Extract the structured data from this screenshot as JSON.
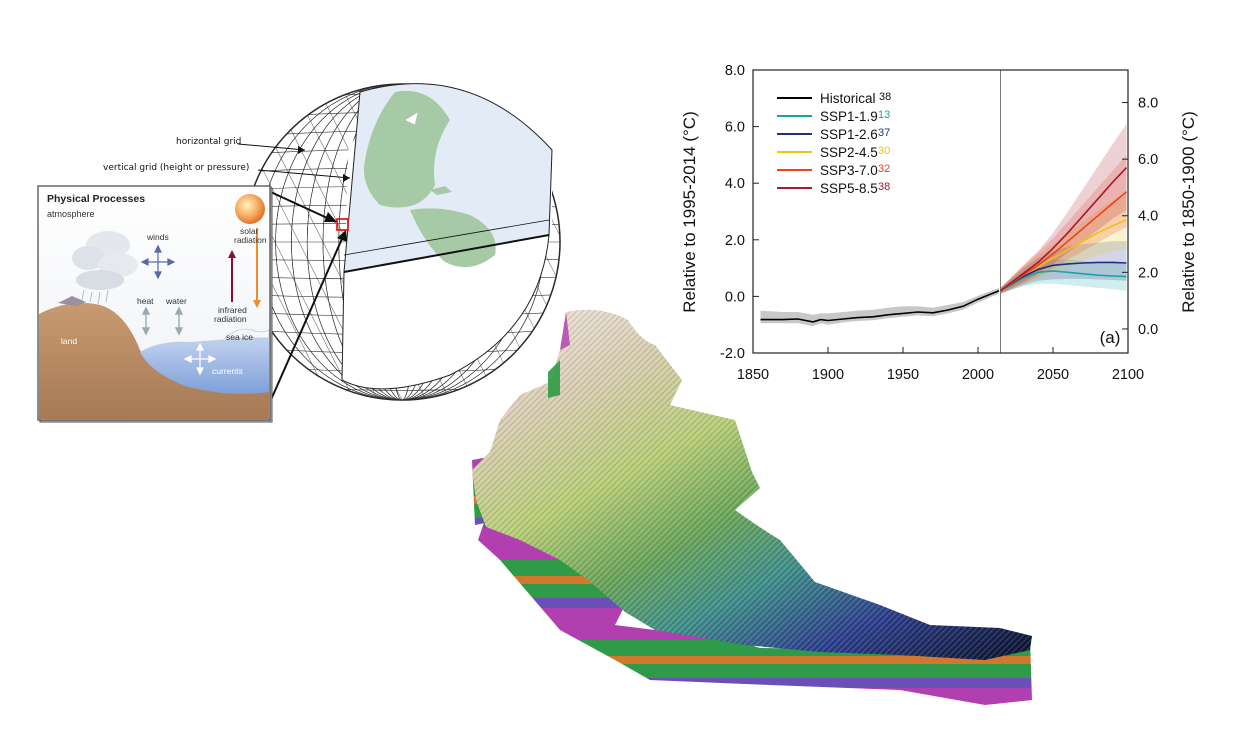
{
  "globe_panel": {
    "horizontal_grid_label": "horizontal grid",
    "vertical_grid_label": "vertical grid (height or pressure)",
    "inset": {
      "title": "Physical Processes",
      "subtitle": "atmosphere",
      "winds": "winds",
      "solar_line1": "solar",
      "solar_line2": "radiation",
      "heat": "heat",
      "water": "water",
      "infrared_line1": "infrared",
      "infrared_line2": "radiation",
      "sea_ice": "sea ice",
      "land": "land",
      "currents": "currents"
    }
  },
  "terrain_block": {
    "elevation_colors": [
      "#e8d8cc",
      "#b8cf7a",
      "#5f9c52",
      "#3a8a86",
      "#2e3c8a",
      "#101a3a"
    ],
    "strata_colors": [
      "#b23fb0",
      "#2f9a47",
      "#d0782e",
      "#6a4fb8"
    ]
  },
  "chart_data": {
    "type": "line",
    "panel_label": "(a)",
    "ylabel_left": "Relative to 1995-2014 (°C)",
    "ylabel_right": "Relative to 1850-1900 (°C)",
    "xlim": [
      1850,
      2100
    ],
    "ylim_left": [
      -2.0,
      8.0
    ],
    "ylim_right": [
      -0.85,
      9.15
    ],
    "x_ticks": [
      "1850",
      "1900",
      "1950",
      "2000",
      "2050",
      "2100"
    ],
    "y_ticks_left": [
      "-2.0",
      "0.0",
      "2.0",
      "4.0",
      "6.0",
      "8.0"
    ],
    "y_ticks_right": [
      "0.0",
      "2.0",
      "4.0",
      "6.0",
      "8.0"
    ],
    "divider_year": 2015,
    "legend_position": "top-left",
    "series": [
      {
        "name": "Historical",
        "count": "38",
        "color": "#000000",
        "x": [
          1855,
          1870,
          1880,
          1890,
          1895,
          1900,
          1910,
          1920,
          1930,
          1940,
          1950,
          1960,
          1970,
          1980,
          1990,
          2000,
          2014
        ],
        "y": [
          -0.82,
          -0.82,
          -0.8,
          -0.9,
          -0.82,
          -0.85,
          -0.8,
          -0.75,
          -0.72,
          -0.65,
          -0.6,
          -0.55,
          -0.58,
          -0.48,
          -0.35,
          -0.1,
          0.2
        ],
        "lower": [
          -0.95,
          -0.95,
          -0.95,
          -1.05,
          -0.95,
          -1.0,
          -0.92,
          -0.87,
          -0.84,
          -0.77,
          -0.72,
          -0.67,
          -0.7,
          -0.6,
          -0.47,
          -0.22,
          0.1
        ],
        "upper": [
          -0.5,
          -0.55,
          -0.55,
          -0.65,
          -0.6,
          -0.6,
          -0.55,
          -0.5,
          -0.47,
          -0.4,
          -0.35,
          -0.35,
          -0.4,
          -0.3,
          -0.2,
          0.02,
          0.3
        ]
      },
      {
        "name": "SSP1-1.9",
        "count": "13",
        "color": "#17a4a4",
        "x": [
          2015,
          2030,
          2040,
          2050,
          2060,
          2070,
          2080,
          2090,
          2099
        ],
        "y": [
          0.2,
          0.65,
          0.85,
          0.9,
          0.85,
          0.8,
          0.75,
          0.72,
          0.7
        ],
        "lower": [
          0.1,
          0.35,
          0.45,
          0.45,
          0.4,
          0.35,
          0.3,
          0.25,
          0.2
        ],
        "upper": [
          0.3,
          0.9,
          1.2,
          1.3,
          1.3,
          1.25,
          1.2,
          1.2,
          1.15
        ]
      },
      {
        "name": "SSP1-2.6",
        "count": "37",
        "color": "#1e3080",
        "x": [
          2015,
          2030,
          2040,
          2050,
          2060,
          2070,
          2080,
          2090,
          2099
        ],
        "y": [
          0.2,
          0.7,
          0.95,
          1.1,
          1.15,
          1.18,
          1.2,
          1.2,
          1.18
        ],
        "lower": [
          0.1,
          0.4,
          0.55,
          0.6,
          0.62,
          0.62,
          0.6,
          0.58,
          0.55
        ],
        "upper": [
          0.3,
          1.0,
          1.35,
          1.6,
          1.75,
          1.85,
          1.9,
          1.95,
          1.95
        ]
      },
      {
        "name": "SSP2-4.5",
        "count": "30",
        "color": "#eac40e",
        "x": [
          2015,
          2030,
          2040,
          2050,
          2060,
          2070,
          2080,
          2090,
          2099
        ],
        "y": [
          0.2,
          0.75,
          1.05,
          1.35,
          1.65,
          1.95,
          2.25,
          2.5,
          2.7
        ],
        "lower": [
          0.1,
          0.45,
          0.65,
          0.85,
          1.05,
          1.25,
          1.45,
          1.6,
          1.7
        ],
        "upper": [
          0.3,
          1.05,
          1.45,
          1.85,
          2.25,
          2.65,
          3.05,
          3.4,
          3.7
        ]
      },
      {
        "name": "SSP3-7.0",
        "count": "32",
        "color": "#f0401e",
        "x": [
          2015,
          2030,
          2040,
          2050,
          2060,
          2070,
          2080,
          2090,
          2099
        ],
        "y": [
          0.2,
          0.75,
          1.1,
          1.5,
          1.95,
          2.4,
          2.85,
          3.3,
          3.7
        ],
        "lower": [
          0.1,
          0.45,
          0.7,
          1.0,
          1.3,
          1.6,
          1.9,
          2.2,
          2.45
        ],
        "upper": [
          0.3,
          1.05,
          1.55,
          2.05,
          2.65,
          3.25,
          3.85,
          4.45,
          5.0
        ]
      },
      {
        "name": "SSP5-8.5",
        "count": "38",
        "color": "#a6192e",
        "x": [
          2015,
          2030,
          2040,
          2050,
          2060,
          2070,
          2080,
          2090,
          2099
        ],
        "y": [
          0.2,
          0.8,
          1.2,
          1.7,
          2.25,
          2.85,
          3.45,
          4.05,
          4.55
        ],
        "lower": [
          0.1,
          0.5,
          0.8,
          1.15,
          1.55,
          1.95,
          2.35,
          2.75,
          3.05
        ],
        "upper": [
          0.3,
          1.1,
          1.6,
          2.25,
          3.0,
          3.8,
          4.6,
          5.4,
          6.1
        ]
      }
    ]
  }
}
